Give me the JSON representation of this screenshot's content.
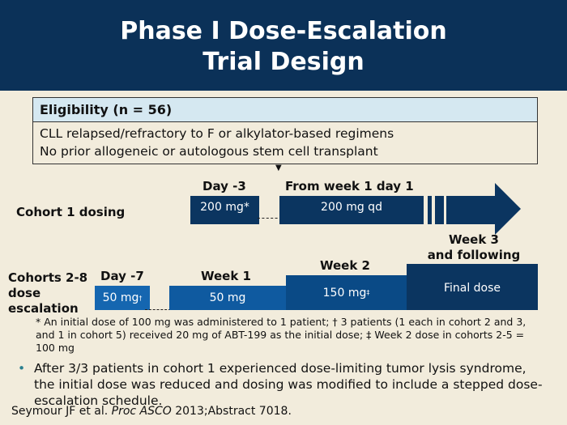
{
  "title": {
    "line1": "Phase I Dose-Escalation",
    "line2": "Trial Design"
  },
  "eligibility": {
    "header": "Eligibility (n = 56)",
    "lines": [
      "CLL relapsed/refractory to F or alkylator-based regimens",
      "No prior allogeneic or autologous stem cell transplant"
    ]
  },
  "cohort1": {
    "label": "Cohort 1 dosing",
    "day_label": "Day -3",
    "day_dose": "200 mg*",
    "week_label": "From week 1 day 1",
    "week_dose": "200 mg qd"
  },
  "cohorts2_8": {
    "label_lines": [
      "Cohorts 2-8",
      "dose",
      "escalation"
    ],
    "day_label": "Day -7",
    "day_dose": "50 mg",
    "day_dose_mark": "†",
    "week1_label": "Week 1",
    "week1_dose": "50 mg",
    "week2_label": "Week 2",
    "week2_dose": "150 mg",
    "week2_dose_mark": "‡",
    "week3_label_lines": [
      "Week 3",
      "and following"
    ],
    "final_dose": "Final dose"
  },
  "footnote": "* An initial dose of 100 mg was administered to 1 patient; † 3 patients (1 each in cohort 2 and 3, and 1 in cohort 5) received 20 mg of ABT-199 as the initial dose; ‡ Week 2 dose in cohorts 2-5 = 100 mg",
  "bullet": "After 3/3 patients in cohort 1 experienced dose-limiting tumor lysis syndrome, the initial dose was reduced and dosing was modified to include a stepped dose-escalation schedule.",
  "reference": {
    "authors": "Seymour JF et al. ",
    "journal": "Proc ASCO",
    "rest": " 2013;Abstract 7018."
  }
}
